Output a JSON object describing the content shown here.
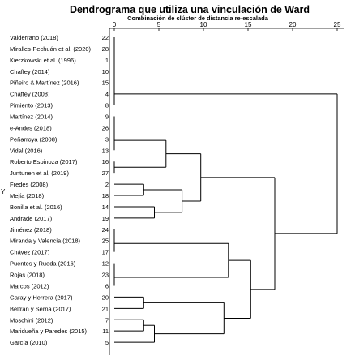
{
  "title": "Dendrograma que utiliza una vinculación de Ward",
  "subtitle": "Combinación de clúster de distancia re-escalada",
  "ylabel": "Y",
  "chart_data": {
    "type": "dendrogram",
    "xlim": [
      0,
      25
    ],
    "x_ticks": [
      "0",
      "5",
      "10",
      "15",
      "20",
      "25"
    ],
    "leaves": [
      {
        "name": "Valderrano (2018)",
        "id": "22"
      },
      {
        "name": "Miralles-Pechuán et al, (2020)",
        "id": "28"
      },
      {
        "name": "Kierzkowski et al. (1996)",
        "id": "1"
      },
      {
        "name": "Chaffey (2014)",
        "id": "10"
      },
      {
        "name": "Piñeiro & Martínez (2016)",
        "id": "15"
      },
      {
        "name": "Chaffey (2008)",
        "id": "4"
      },
      {
        "name": "Pimiento (2013)",
        "id": "8"
      },
      {
        "name": "Martínez (2014)",
        "id": "9"
      },
      {
        "name": "e-Andes (2018)",
        "id": "26"
      },
      {
        "name": "Peñarroya (2008)",
        "id": "3"
      },
      {
        "name": "Vidal (2016)",
        "id": "13"
      },
      {
        "name": "Roberto Espinoza (2017)",
        "id": "16"
      },
      {
        "name": "Juntunen et al, (2019)",
        "id": "27"
      },
      {
        "name": "Fredes (2008)",
        "id": "2"
      },
      {
        "name": "Mejía (2018)",
        "id": "18"
      },
      {
        "name": "Bonilla et al. (2016)",
        "id": "14"
      },
      {
        "name": "Andrade (2017)",
        "id": "19"
      },
      {
        "name": "Jiménez (2018)",
        "id": "24"
      },
      {
        "name": "Miranda y Valencia (2018)",
        "id": "25"
      },
      {
        "name": "Chávez (2017)",
        "id": "17"
      },
      {
        "name": "Puentes y Rueda (2016)",
        "id": "12"
      },
      {
        "name": "Rojas (2018)",
        "id": "23"
      },
      {
        "name": "Marcos (2012)",
        "id": "6"
      },
      {
        "name": "Garay y Herrera (2017)",
        "id": "20"
      },
      {
        "name": "Beltrán y Serna (2017)",
        "id": "21"
      },
      {
        "name": "Moschini (2012)",
        "id": "7"
      },
      {
        "name": "Maridueña y Paredes (2015)",
        "id": "11"
      },
      {
        "name": "García (2010)",
        "id": "5"
      }
    ],
    "merges": [
      {
        "a": 0,
        "b": 1,
        "h": 0.0
      },
      {
        "a": 28,
        "b": 2,
        "h": 0.0
      },
      {
        "a": 29,
        "b": 3,
        "h": 0.0
      },
      {
        "a": 30,
        "b": 4,
        "h": 0.0
      },
      {
        "a": 31,
        "b": 5,
        "h": 0.0
      },
      {
        "a": 32,
        "b": 6,
        "h": 0.0
      },
      {
        "a": 7,
        "b": 8,
        "h": 0.0
      },
      {
        "a": 34,
        "b": 9,
        "h": 0.0
      },
      {
        "a": 35,
        "b": 10,
        "h": 0.0
      },
      {
        "a": 11,
        "b": 12,
        "h": 0.0
      },
      {
        "a": 13,
        "b": 14,
        "h": 3.3
      },
      {
        "a": 15,
        "b": 16,
        "h": 4.5
      },
      {
        "a": 38,
        "b": 39,
        "h": 7.6
      },
      {
        "a": 36,
        "b": 37,
        "h": 5.8
      },
      {
        "a": 17,
        "b": 18,
        "h": 0.0
      },
      {
        "a": 42,
        "b": 19,
        "h": 0.0
      },
      {
        "a": 20,
        "b": 21,
        "h": 0.0
      },
      {
        "a": 44,
        "b": 22,
        "h": 0.0
      },
      {
        "a": 23,
        "b": 24,
        "h": 3.3
      },
      {
        "a": 25,
        "b": 26,
        "h": 3.3
      },
      {
        "a": 47,
        "b": 27,
        "h": 4.5
      },
      {
        "a": 40,
        "b": 41,
        "h": 9.7
      },
      {
        "a": 43,
        "b": 45,
        "h": 12.8
      },
      {
        "a": 46,
        "b": 48,
        "h": 12.3
      },
      {
        "a": 50,
        "b": 51,
        "h": 15.3
      },
      {
        "a": 49,
        "b": 52,
        "h": 18.0
      },
      {
        "a": 33,
        "b": 53,
        "h": 25.0
      }
    ]
  }
}
